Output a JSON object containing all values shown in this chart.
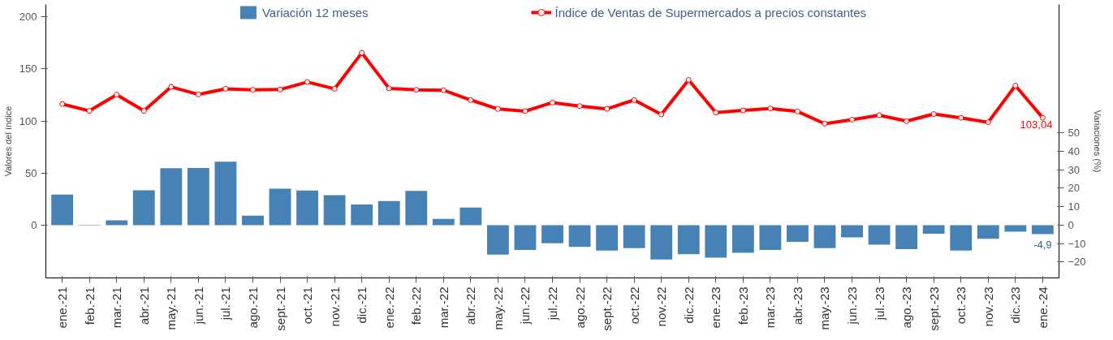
{
  "chart_data": {
    "type": "bar",
    "ylabel": "Valores del índice",
    "y2label": "Variaciones (%)",
    "categories": [
      "ene.-21",
      "feb.-21",
      "mar.-21",
      "abr.-21",
      "may.-21",
      "jun.-21",
      "jul.-21",
      "ago.-21",
      "sept.-21",
      "oct.-21",
      "nov.-21",
      "dic.-21",
      "ene.-22",
      "feb.-22",
      "mar.-22",
      "abr.-22",
      "may.-22",
      "jun.-22",
      "jul.-22",
      "ago.-22",
      "sept.-22",
      "oct.-22",
      "nov.-22",
      "dic.-22",
      "ene.-23",
      "feb.-23",
      "mar.-23",
      "abr.-23",
      "may.-23",
      "jun.-23",
      "jul.-23",
      "ago.-23",
      "sept.-23",
      "oct.-23",
      "nov.-23",
      "dic.-23",
      "ene.-24"
    ],
    "series": [
      {
        "name": "Variación 12 meses",
        "axis": "y2",
        "color": "#4682b4",
        "values": [
          16.6,
          -0.3,
          2.6,
          18.9,
          30.8,
          31.0,
          34.3,
          5.1,
          19.7,
          18.7,
          16.2,
          11.2,
          13.0,
          18.5,
          3.4,
          9.5,
          -16.0,
          -13.4,
          -9.8,
          -11.8,
          -13.8,
          -12.4,
          -18.6,
          -15.8,
          -17.6,
          -15.0,
          -13.4,
          -9.0,
          -12.4,
          -6.6,
          -10.6,
          -13.0,
          -4.6,
          -13.8,
          -7.4,
          -3.6,
          -4.9
        ],
        "value_labels": [
          null,
          null,
          null,
          null,
          null,
          null,
          null,
          null,
          null,
          null,
          null,
          null,
          null,
          null,
          null,
          null,
          null,
          null,
          null,
          null,
          null,
          null,
          null,
          null,
          null,
          null,
          null,
          null,
          null,
          null,
          null,
          null,
          null,
          null,
          null,
          null,
          "-4,9"
        ]
      },
      {
        "name": "Índice de Ventas de Supermercados a precios constantes",
        "type": "line",
        "color": "#ff0000",
        "marker": "circle",
        "line_style": "solid",
        "values": [
          116.2,
          109.7,
          125.2,
          109.7,
          132.7,
          125.5,
          130.9,
          129.9,
          130.2,
          137.4,
          130.9,
          165.5,
          131.3,
          129.9,
          129.5,
          120.1,
          111.5,
          109.4,
          117.6,
          114.3,
          111.6,
          120.1,
          106.2,
          139.4,
          108.0,
          110.1,
          111.9,
          109.1,
          97.3,
          101.2,
          105.5,
          99.8,
          106.6,
          103.0,
          98.7,
          134.0,
          103.04
        ],
        "value_labels": [
          null,
          null,
          null,
          null,
          null,
          null,
          null,
          null,
          null,
          null,
          null,
          null,
          null,
          null,
          null,
          null,
          null,
          null,
          null,
          null,
          null,
          null,
          null,
          null,
          null,
          null,
          null,
          null,
          null,
          null,
          null,
          null,
          null,
          null,
          null,
          null,
          "103,04"
        ]
      }
    ],
    "ylim": [
      -51,
      212
    ],
    "yticks": [
      0,
      50,
      100,
      150,
      200
    ],
    "y2lim": [
      -28.6,
      119.5
    ],
    "y2ticks": [
      -20,
      -10,
      0,
      10,
      20,
      30,
      40,
      50
    ],
    "legend": "top",
    "grid": false
  }
}
